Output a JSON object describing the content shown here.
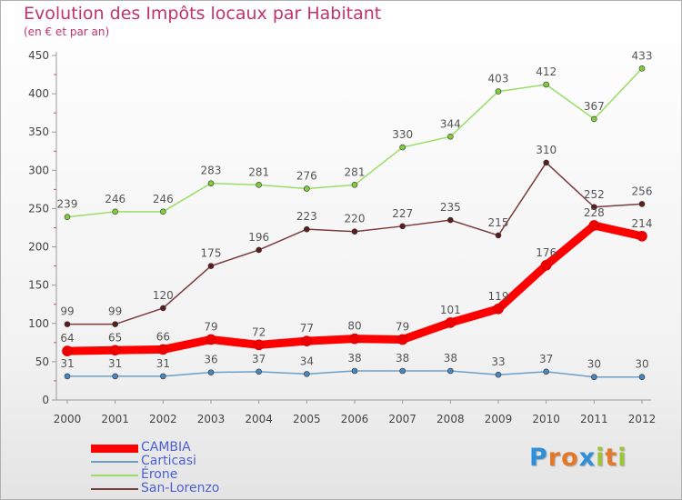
{
  "title": "Evolution des Impôts locaux par Habitant",
  "subtitle": "(en € et par an)",
  "brand": {
    "letters": [
      "P",
      "r",
      "o",
      "x",
      "i",
      "t",
      "i"
    ],
    "colors": [
      "#2f8fd8",
      "#e3782a",
      "#e3782a",
      "#2f8fd8",
      "#9cc33a",
      "#e3782a",
      "#9cc33a"
    ]
  },
  "chart_data": {
    "type": "line",
    "title": "Evolution des Impôts locaux par Habitant",
    "subtitle": "(en € et par an)",
    "xlabel": "",
    "ylabel": "",
    "categories": [
      "2000",
      "2001",
      "2002",
      "2003",
      "2004",
      "2005",
      "2006",
      "2007",
      "2008",
      "2009",
      "2010",
      "2011",
      "2012"
    ],
    "ylim": [
      0,
      450
    ],
    "yticks": [
      0,
      50,
      100,
      150,
      200,
      250,
      300,
      350,
      400,
      450
    ],
    "ytick_labels": [
      "0",
      "50",
      "100",
      "150",
      "200",
      "250",
      "300",
      "350",
      "400",
      "450"
    ],
    "grid": false,
    "legend_position": "bottom-left",
    "series": [
      {
        "name": "CAMBIA",
        "color": "#ff0000",
        "marker_color": "#ee0000",
        "values": [
          64,
          65,
          66,
          79,
          72,
          77,
          80,
          79,
          101,
          119,
          176,
          228,
          214
        ]
      },
      {
        "name": "Carticasi",
        "color": "#6d9ec6",
        "marker_color": "#4a86be",
        "values": [
          31,
          31,
          31,
          36,
          37,
          34,
          38,
          38,
          38,
          33,
          37,
          30,
          30
        ]
      },
      {
        "name": "Érone",
        "color": "#99dd66",
        "marker_color": "#7fcc3d",
        "values": [
          239,
          246,
          246,
          283,
          281,
          276,
          281,
          330,
          344,
          403,
          412,
          367,
          433
        ]
      },
      {
        "name": "San-Lorenzo",
        "color": "#7a3b3b",
        "marker_color": "#5e1c1c",
        "values": [
          99,
          99,
          120,
          175,
          196,
          223,
          220,
          227,
          235,
          215,
          310,
          252,
          256
        ]
      }
    ]
  }
}
